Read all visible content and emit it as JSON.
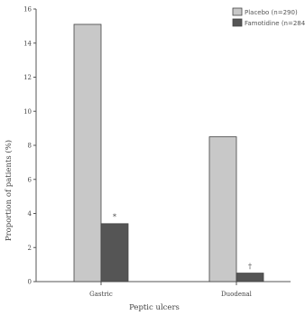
{
  "chart_data": {
    "type": "bar",
    "categories": [
      "Gastric",
      "Duodenal"
    ],
    "series": [
      {
        "name": "Placebo (n=290)",
        "values": [
          15.1,
          8.5
        ],
        "color": "#c8c8c8"
      },
      {
        "name": "Famotidine (n=284)",
        "values": [
          3.4,
          0.5
        ],
        "color": "#555555"
      }
    ],
    "annotations": [
      {
        "category": 0,
        "series": 1,
        "text": "*"
      },
      {
        "category": 1,
        "series": 1,
        "text": "†"
      }
    ],
    "xlabel": "Peptic ulcers",
    "ylabel": "Proportion of patients (%)",
    "ylim": [
      0,
      16
    ],
    "yticks": [
      0,
      2,
      4,
      6,
      8,
      10,
      12,
      14,
      16
    ],
    "grid": false,
    "legend_position": "top-right"
  }
}
